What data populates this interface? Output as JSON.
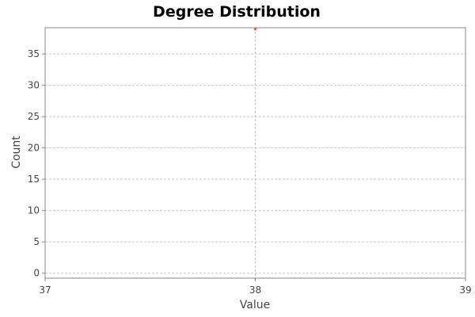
{
  "chart_data": {
    "type": "scatter",
    "title": "Degree Distribution",
    "xlabel": "Value",
    "ylabel": "Count",
    "xlim": [
      37,
      39
    ],
    "ylim": [
      -0.8,
      39.2
    ],
    "xticks": [
      37,
      38,
      39
    ],
    "yticks": [
      0,
      5,
      10,
      15,
      20,
      25,
      30,
      35
    ],
    "grid": true,
    "points": [
      {
        "x": 38,
        "y": 39
      }
    ],
    "colors": {
      "point": "#e8623a",
      "grid": "#c8c8c8",
      "frame": "#888888",
      "background": "#ffffff"
    }
  }
}
